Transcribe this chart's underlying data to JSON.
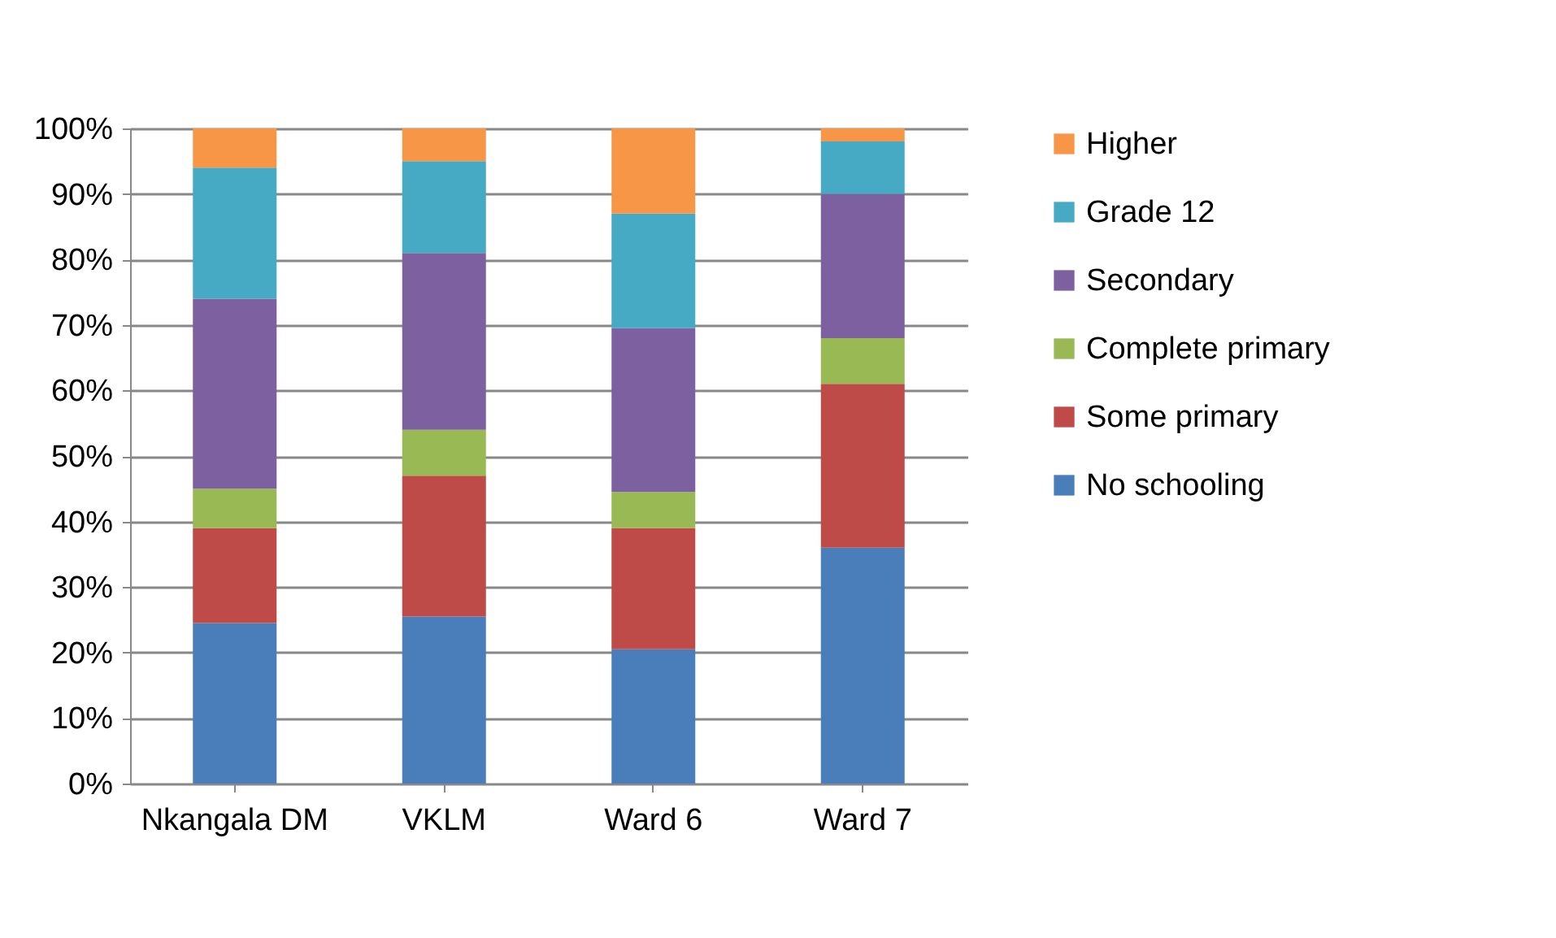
{
  "chart_data": {
    "type": "bar",
    "stacked": true,
    "categories": [
      "Nkangala DM",
      "VKLM",
      "Ward 6",
      "Ward 7"
    ],
    "series": [
      {
        "name": "No schooling",
        "color": "#4a7ebb",
        "values": [
          24.5,
          25.5,
          20.5,
          36
        ]
      },
      {
        "name": "Some primary",
        "color": "#be4b48",
        "values": [
          14.5,
          21.5,
          18.5,
          25
        ]
      },
      {
        "name": "Complete primary",
        "color": "#98b954",
        "values": [
          6,
          7,
          5.5,
          7
        ]
      },
      {
        "name": "Secondary",
        "color": "#7d60a0",
        "values": [
          29,
          27,
          25,
          22
        ]
      },
      {
        "name": "Grade 12",
        "color": "#46aac5",
        "values": [
          20,
          14,
          17.5,
          8
        ]
      },
      {
        "name": "Higher",
        "color": "#f79646",
        "values": [
          6,
          5,
          13,
          2
        ]
      }
    ],
    "ylim": [
      0,
      100
    ],
    "yticks": [
      {
        "value": 0,
        "label": "0%"
      },
      {
        "value": 10,
        "label": "10%"
      },
      {
        "value": 20,
        "label": "20%"
      },
      {
        "value": 30,
        "label": "30%"
      },
      {
        "value": 40,
        "label": "40%"
      },
      {
        "value": 50,
        "label": "50%"
      },
      {
        "value": 60,
        "label": "60%"
      },
      {
        "value": 70,
        "label": "70%"
      },
      {
        "value": 80,
        "label": "80%"
      },
      {
        "value": 90,
        "label": "90%"
      },
      {
        "value": 100,
        "label": "100%"
      }
    ],
    "grid": "y",
    "legend": "right"
  }
}
